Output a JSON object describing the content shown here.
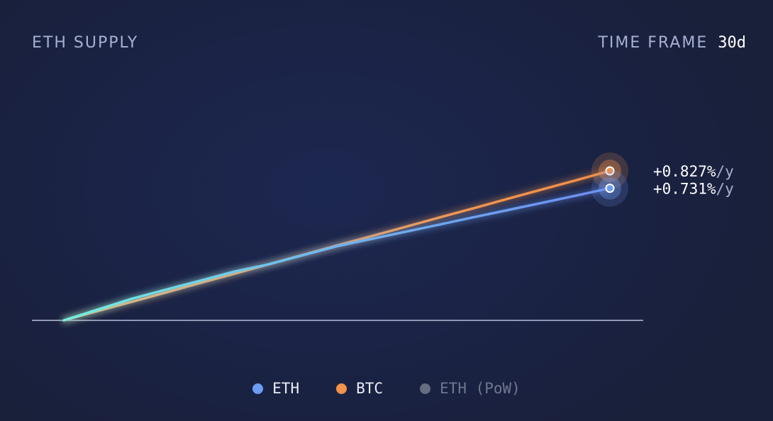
{
  "header": {
    "title": "ETH SUPPLY",
    "timeframe_label": "TIME FRAME",
    "timeframe_value": "30d"
  },
  "chart_data": {
    "type": "line",
    "title": "ETH SUPPLY",
    "xlabel": "",
    "ylabel": "",
    "grid": false,
    "legend_position": "bottom",
    "series": [
      {
        "name": "ETH",
        "color": "#6d9cf2",
        "values": [
          0,
          0.06,
          0.12,
          0.17,
          0.22,
          0.27,
          0.31,
          0.36,
          0.41,
          0.45,
          0.49,
          0.53,
          0.57,
          0.61,
          0.65,
          0.69,
          0.731
        ],
        "end_value": "+0.731%",
        "unit": "/y"
      },
      {
        "name": "BTC",
        "color": "#f2934a",
        "values": [
          0,
          0.052,
          0.103,
          0.155,
          0.207,
          0.258,
          0.31,
          0.362,
          0.414,
          0.465,
          0.517,
          0.569,
          0.62,
          0.672,
          0.724,
          0.775,
          0.827
        ],
        "end_value": "+0.827%",
        "unit": "/y"
      },
      {
        "name": "ETH (PoW)",
        "color": "#666d80",
        "values": [],
        "hidden": true
      }
    ]
  },
  "legend": [
    {
      "label": "ETH",
      "color": "#6d9cf2",
      "text_color": "#e8ecf7"
    },
    {
      "label": "BTC",
      "color": "#f2934a",
      "text_color": "#e8ecf7"
    },
    {
      "label": "ETH (PoW)",
      "color": "#666d80",
      "text_color": "#6f778f"
    }
  ]
}
